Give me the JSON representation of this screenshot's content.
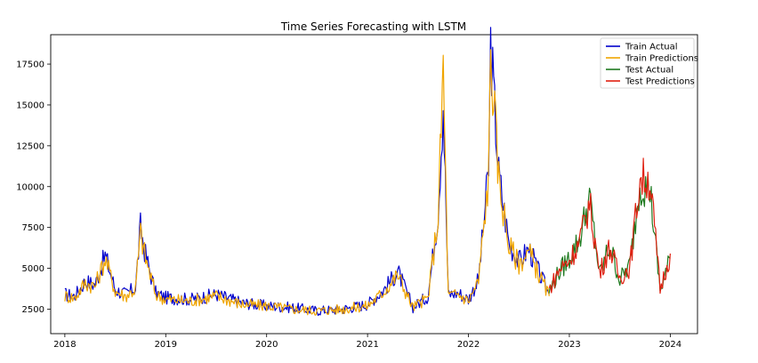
{
  "chart_data": {
    "type": "line",
    "title": "Time Series Forecasting with LSTM",
    "xlabel": "",
    "ylabel": "",
    "x_ticks": [
      "2018",
      "2019",
      "2020",
      "2021",
      "2022",
      "2023",
      "2024"
    ],
    "y_ticks": [
      2500,
      5000,
      7500,
      10000,
      12500,
      15000,
      17500
    ],
    "xlim": [
      2017.86,
      2024.27
    ],
    "ylim": [
      1000,
      19300
    ],
    "grid": false,
    "legend": "top-right",
    "series": [
      {
        "name": "Train Actual",
        "color": "#0000cc",
        "x": [
          2018.0,
          2018.1,
          2018.2,
          2018.3,
          2018.4,
          2018.5,
          2018.6,
          2018.7,
          2018.75,
          2018.8,
          2018.9,
          2019.0,
          2019.25,
          2019.5,
          2019.75,
          2020.0,
          2020.25,
          2020.5,
          2020.75,
          2021.0,
          2021.15,
          2021.3,
          2021.45,
          2021.6,
          2021.7,
          2021.75,
          2021.8,
          2021.9,
          2022.0,
          2022.1,
          2022.2,
          2022.22,
          2022.3,
          2022.4,
          2022.5,
          2022.6,
          2022.7,
          2022.8
        ],
        "y": [
          3400,
          3300,
          4200,
          4000,
          5800,
          3700,
          3400,
          3800,
          7500,
          5800,
          3500,
          3200,
          3100,
          3400,
          2900,
          2700,
          2600,
          2400,
          2500,
          2800,
          3600,
          4800,
          2600,
          3300,
          8500,
          15200,
          3400,
          3500,
          3100,
          4300,
          11000,
          18700,
          10800,
          6600,
          5400,
          6200,
          4700,
          3400
        ]
      },
      {
        "name": "Train Predictions",
        "color": "#f0a500",
        "x": [
          2018.0,
          2018.1,
          2018.2,
          2018.3,
          2018.4,
          2018.5,
          2018.6,
          2018.7,
          2018.75,
          2018.8,
          2018.9,
          2019.0,
          2019.25,
          2019.5,
          2019.75,
          2020.0,
          2020.25,
          2020.5,
          2020.75,
          2021.0,
          2021.15,
          2021.3,
          2021.45,
          2021.6,
          2021.7,
          2021.75,
          2021.8,
          2021.9,
          2022.0,
          2022.1,
          2022.2,
          2022.22,
          2022.3,
          2022.4,
          2022.5,
          2022.6,
          2022.7,
          2022.8
        ],
        "y": [
          3300,
          3200,
          4100,
          3900,
          5600,
          3600,
          3300,
          3700,
          7200,
          5600,
          3400,
          3100,
          3000,
          3300,
          2800,
          2700,
          2500,
          2400,
          2500,
          2700,
          3500,
          4600,
          2600,
          3200,
          8200,
          17400,
          3300,
          3400,
          3000,
          4200,
          10600,
          18300,
          10500,
          6400,
          5300,
          6000,
          4600,
          3300
        ]
      },
      {
        "name": "Test Actual",
        "color": "#1f7a1f",
        "x": [
          2022.8,
          2022.9,
          2023.0,
          2023.1,
          2023.2,
          2023.3,
          2023.4,
          2023.5,
          2023.6,
          2023.7,
          2023.8,
          2023.9,
          2024.0
        ],
        "y": [
          3600,
          4800,
          5600,
          6800,
          9300,
          4600,
          6400,
          4300,
          5200,
          10200,
          9800,
          3600,
          5600
        ]
      },
      {
        "name": "Test Predictions",
        "color": "#e02010",
        "x": [
          2022.8,
          2022.9,
          2023.0,
          2023.1,
          2023.2,
          2023.3,
          2023.4,
          2023.5,
          2023.6,
          2023.7,
          2023.8,
          2023.9,
          2024.0
        ],
        "y": [
          3700,
          4900,
          5500,
          6600,
          9000,
          4700,
          6300,
          4400,
          5100,
          10500,
          10400,
          3700,
          5900
        ]
      }
    ]
  }
}
